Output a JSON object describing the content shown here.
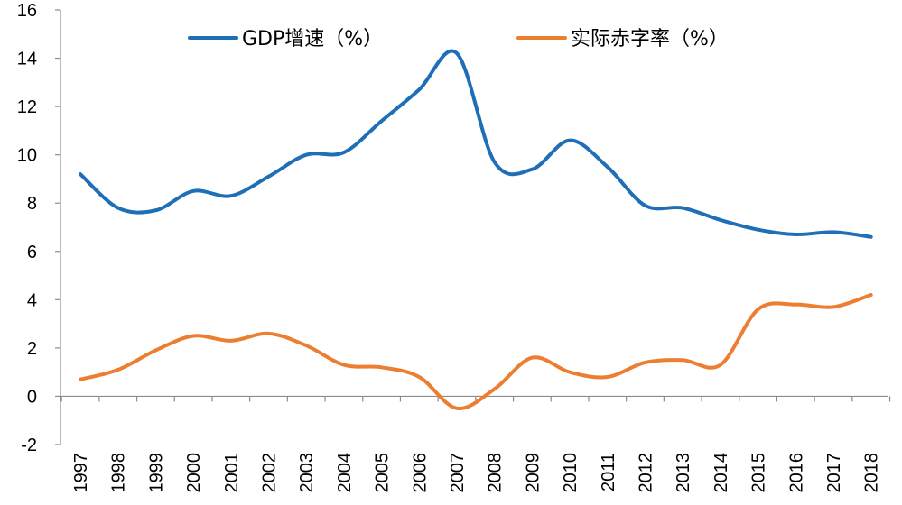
{
  "chart_data": {
    "type": "line",
    "title": "",
    "xlabel": "",
    "ylabel": "",
    "categories": [
      "1997",
      "1998",
      "1999",
      "2000",
      "2001",
      "2002",
      "2003",
      "2004",
      "2005",
      "2006",
      "2007",
      "2008",
      "2009",
      "2010",
      "2011",
      "2012",
      "2013",
      "2014",
      "2015",
      "2016",
      "2017",
      "2018"
    ],
    "ylim": [
      -2,
      16
    ],
    "yticks": [
      -2,
      0,
      2,
      4,
      6,
      8,
      10,
      12,
      14,
      16
    ],
    "ytick_labels": [
      "-2",
      "0",
      "2",
      "4",
      "6",
      "8",
      "10",
      "12",
      "14",
      "16"
    ],
    "grid": false,
    "legend_position": "top",
    "series": [
      {
        "name": "GDP增速（%）",
        "color": "#1F6FB8",
        "values": [
          9.2,
          7.8,
          7.7,
          8.5,
          8.3,
          9.1,
          10.0,
          10.1,
          11.4,
          12.7,
          14.2,
          9.7,
          9.4,
          10.6,
          9.5,
          7.9,
          7.8,
          7.3,
          6.9,
          6.7,
          6.8,
          6.6
        ]
      },
      {
        "name": "实际赤字率（%）",
        "color": "#ED7D31",
        "values": [
          0.7,
          1.1,
          1.9,
          2.5,
          2.3,
          2.6,
          2.1,
          1.3,
          1.2,
          0.8,
          -0.5,
          0.3,
          1.6,
          1.0,
          0.8,
          1.4,
          1.5,
          1.3,
          3.6,
          3.8,
          3.7,
          4.2
        ]
      }
    ]
  }
}
